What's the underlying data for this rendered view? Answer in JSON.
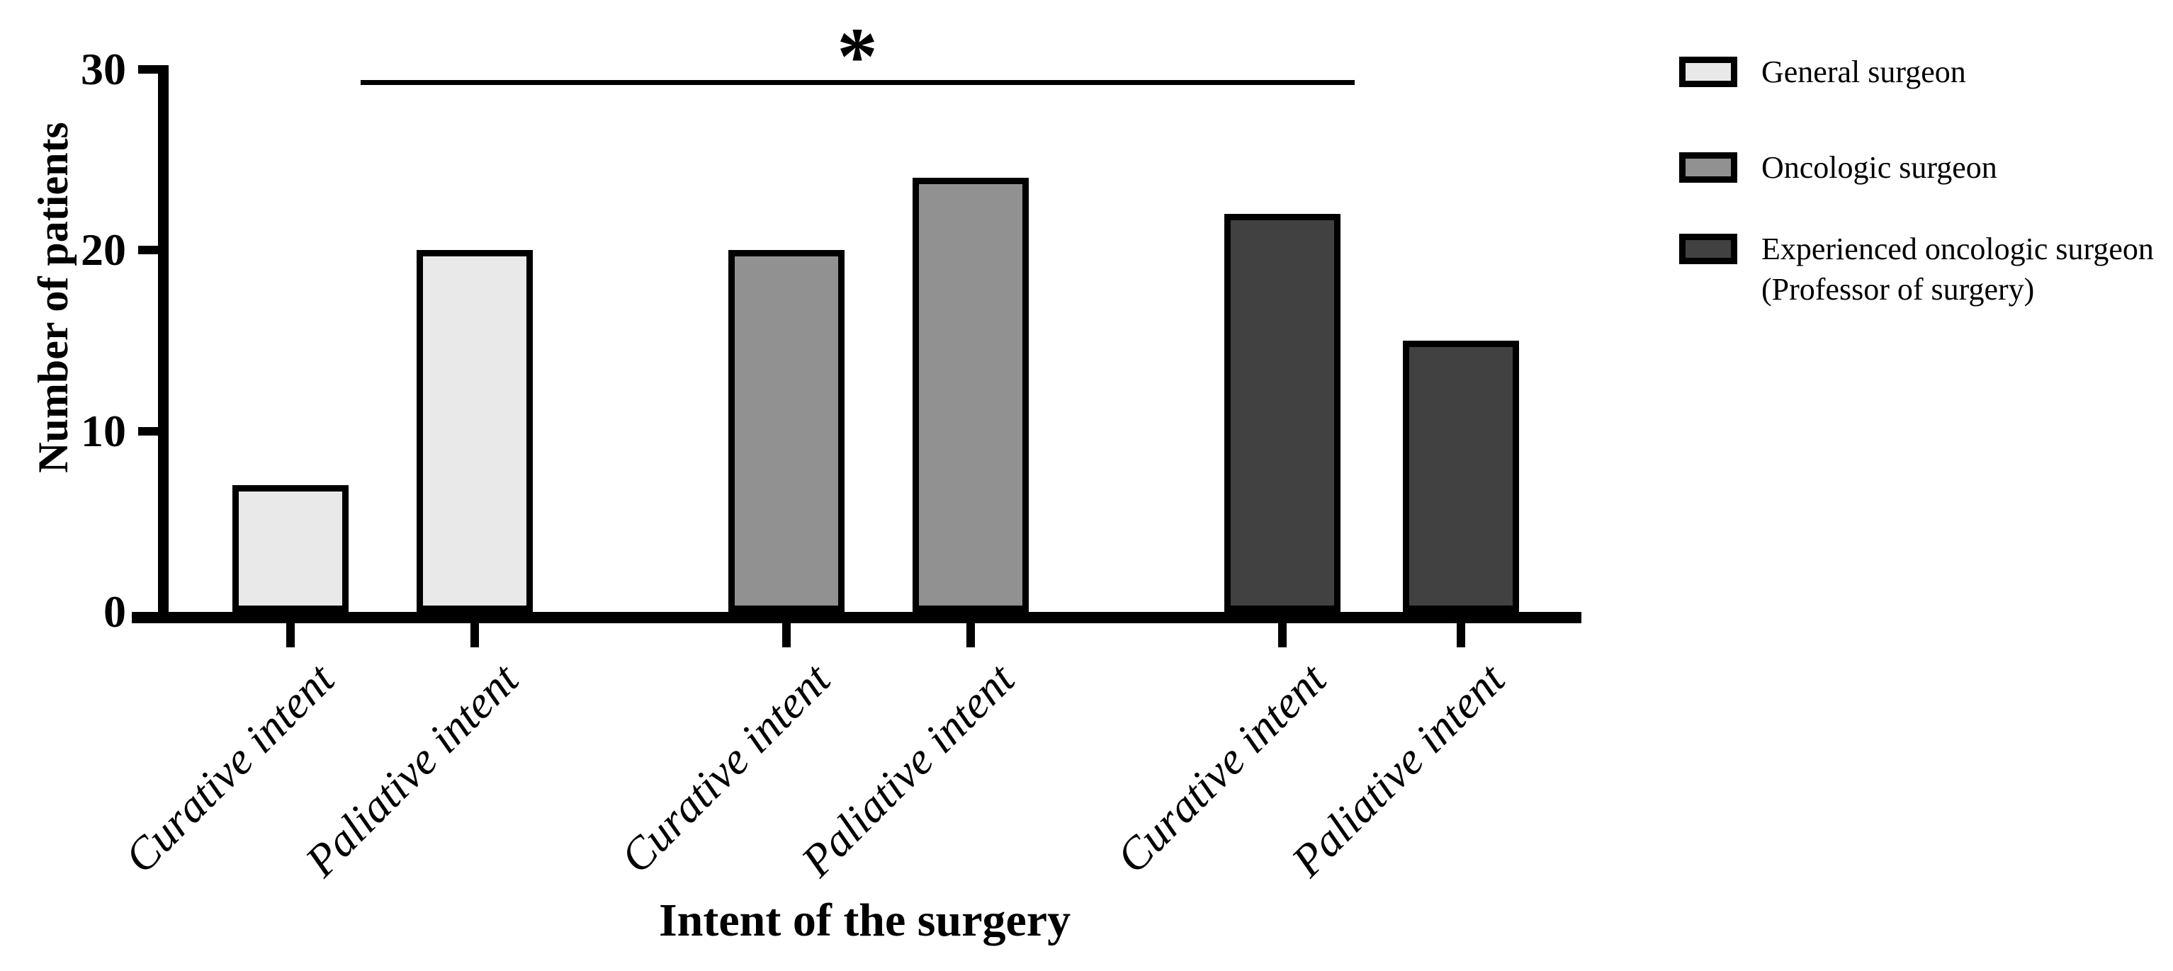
{
  "chart_data": {
    "type": "bar",
    "title": "",
    "ylabel": "Number of patients",
    "xlabel": "Intent of the surgery",
    "ylim": [
      0,
      30
    ],
    "yticks": [
      0,
      10,
      20,
      30
    ],
    "grid": false,
    "legend_position": "top-right",
    "x_tick_label_rotation_deg": -45,
    "categories": [
      "Curative intent",
      "Paliative intent",
      "Curative intent",
      "Paliative intent",
      "Curative intent",
      "Paliative intent"
    ],
    "series": [
      {
        "name": "General surgeon",
        "color": "#e9e9e9",
        "values": [
          7,
          20
        ]
      },
      {
        "name": "Oncologic surgeon",
        "color": "#919191",
        "values": [
          20,
          24
        ]
      },
      {
        "name": "Experienced oncologic surgeon (Professor of surgery)",
        "color": "#414141",
        "values": [
          22,
          15
        ]
      }
    ],
    "bars": [
      {
        "category": "Curative intent",
        "series": "General surgeon",
        "value": 7,
        "color": "#e9e9e9"
      },
      {
        "category": "Paliative intent",
        "series": "General surgeon",
        "value": 20,
        "color": "#e9e9e9"
      },
      {
        "category": "Curative intent",
        "series": "Oncologic surgeon",
        "value": 20,
        "color": "#919191"
      },
      {
        "category": "Paliative intent",
        "series": "Oncologic surgeon",
        "value": 24,
        "color": "#919191"
      },
      {
        "category": "Curative intent",
        "series": "Experienced oncologic surgeon (Professor of surgery)",
        "value": 22,
        "color": "#414141"
      },
      {
        "category": "Paliative intent",
        "series": "Experienced oncologic surgeon (Professor of surgery)",
        "value": 15,
        "color": "#414141"
      }
    ],
    "significance": {
      "symbol": "*",
      "spans": "from Paliative intent (General surgeon) to Curative intent (Experienced oncologic surgeon)"
    },
    "legend": [
      {
        "label": "General surgeon",
        "sublabel": "",
        "color": "#e9e9e9"
      },
      {
        "label": "Oncologic surgeon",
        "sublabel": "",
        "color": "#919191"
      },
      {
        "label": "Experienced oncologic surgeon",
        "sublabel": "(Professor of surgery)",
        "color": "#414141"
      }
    ],
    "axis_color": "#000000",
    "background": "#ffffff"
  }
}
